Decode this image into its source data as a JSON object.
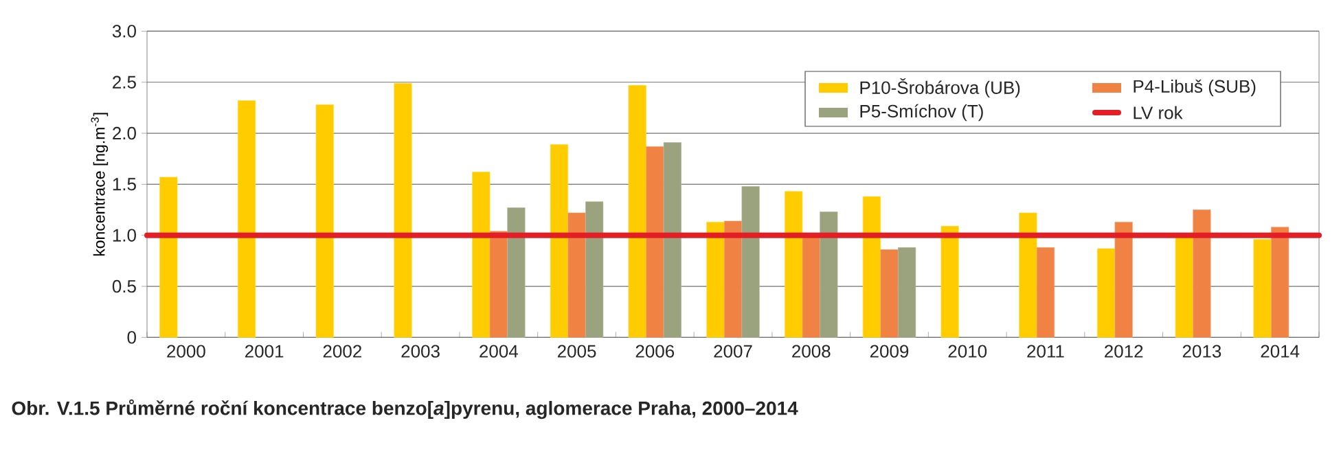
{
  "chart_data": {
    "type": "bar",
    "title": "Obr. V.1.5  Průměrné roční koncentrace benzo[*a*]pyrenu, aglomerace Praha, 2000–2014",
    "ylabel": "koncentrace [ng.m$^{-3}$]",
    "categories": [
      "2000",
      "2001",
      "2002",
      "2003",
      "2004",
      "2005",
      "2006",
      "2007",
      "2008",
      "2009",
      "2010",
      "2011",
      "2012",
      "2013",
      "2014"
    ],
    "series": [
      {
        "name": "P10-Šrobárova (UB)",
        "color": "#ffcc00",
        "values": [
          1.57,
          2.32,
          2.28,
          2.49,
          1.62,
          1.89,
          2.47,
          1.13,
          1.43,
          1.38,
          1.09,
          1.22,
          0.87,
          1.0,
          0.96
        ]
      },
      {
        "name": "P4-Libuš (SUB)",
        "color": "#f08244",
        "values": [
          null,
          null,
          null,
          null,
          1.04,
          1.22,
          1.87,
          1.14,
          1.0,
          0.86,
          null,
          0.88,
          1.13,
          1.25,
          1.08
        ]
      },
      {
        "name": "P5-Smíchov (T)",
        "color": "#9aa27e",
        "values": [
          null,
          null,
          null,
          null,
          1.27,
          1.33,
          1.91,
          1.48,
          1.23,
          0.88,
          null,
          null,
          null,
          null,
          null
        ]
      }
    ],
    "ref_lines": [
      {
        "axis": "y",
        "value": 1,
        "label": "LV rok",
        "color": "#e31e24"
      }
    ],
    "ylim": [
      0,
      3
    ],
    "yticks": [
      0,
      {
        "value": 0.5,
        "label": "0.5"
      },
      {
        "value": 1,
        "label": "1.0"
      },
      {
        "value": 1.5,
        "label": "1.5"
      },
      {
        "value": 2,
        "label": "2.0"
      },
      {
        "value": 2.5,
        "label": "2.5"
      },
      {
        "value": 3,
        "label": "3.0"
      }
    ],
    "grid": "y",
    "legend": "top right"
  }
}
